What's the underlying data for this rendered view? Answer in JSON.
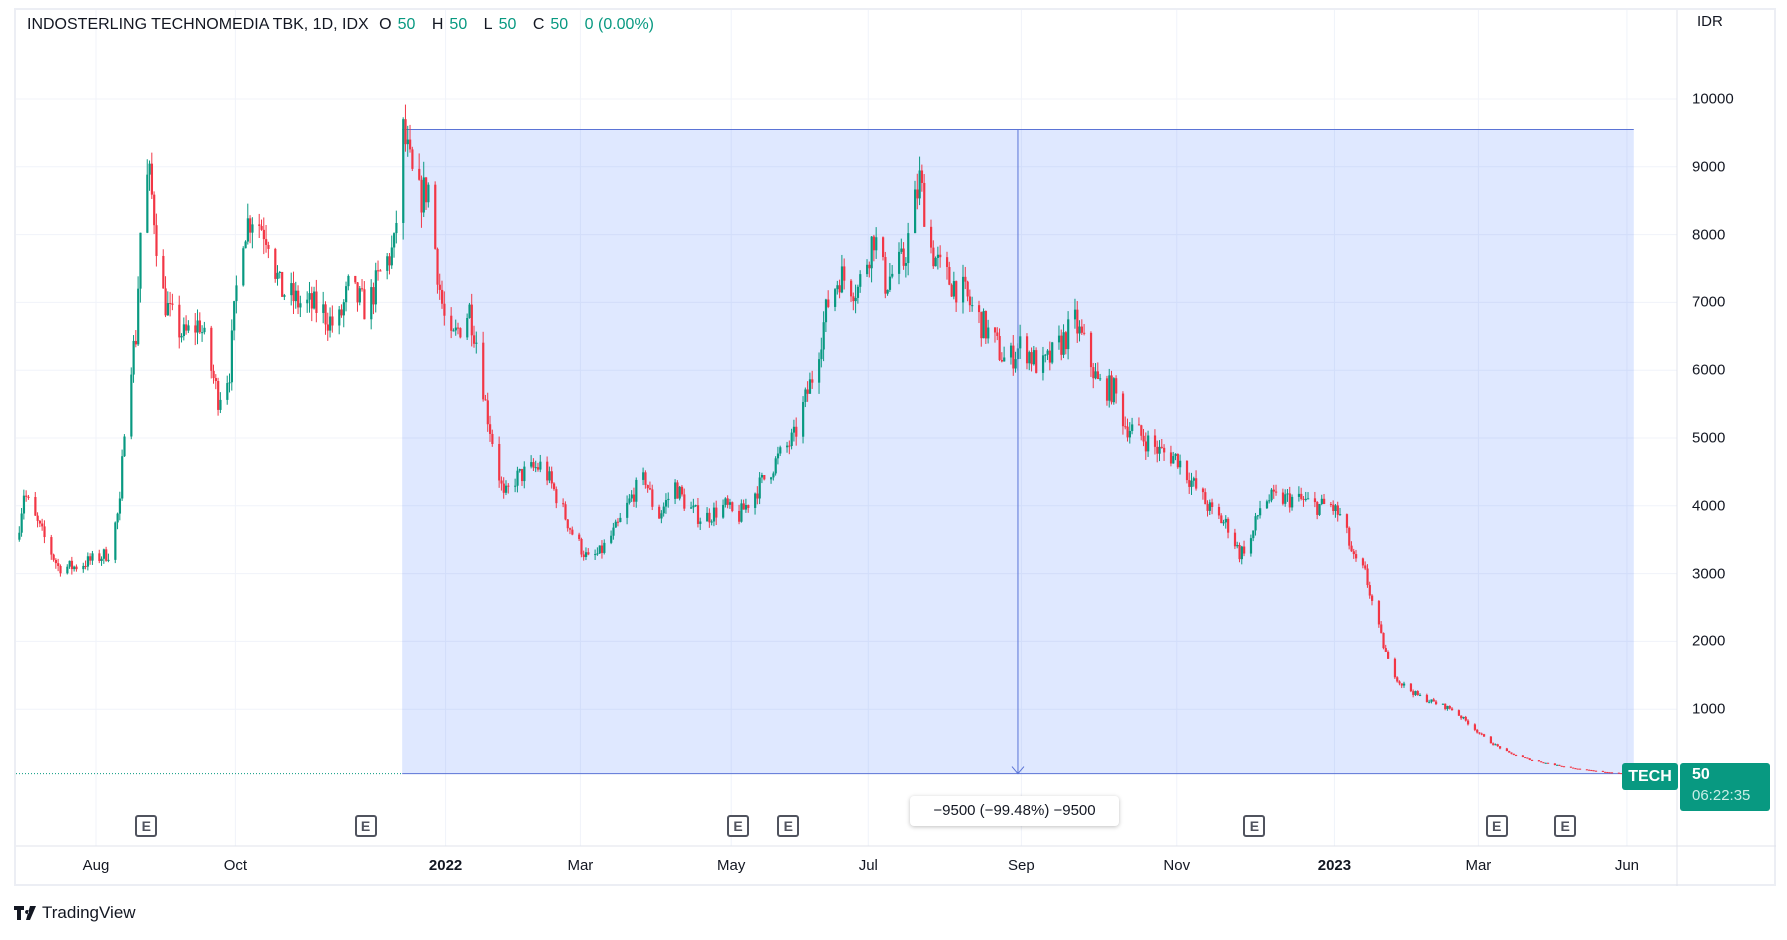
{
  "header": {
    "symbol_name": "INDOSTERLING TECHNOMEDIA TBK, 1D, IDX",
    "o_label": "O",
    "o": "50",
    "h_label": "H",
    "h": "50",
    "l_label": "L",
    "l": "50",
    "c_label": "C",
    "c": "50",
    "change": "0 (0.00%)"
  },
  "currency": "IDR",
  "price_tag": {
    "ticker": "TECH",
    "price": "50",
    "countdown": "06:22:35"
  },
  "measure": {
    "label": "−9500 (−99.48%) −9500"
  },
  "earnings_marker": "E",
  "brand": "TradingView",
  "colors": {
    "up": "#089981",
    "down": "#f23645",
    "range_fill": "#2962ff",
    "range_line": "#5b74d6"
  },
  "chart_data": {
    "type": "candlestick",
    "title": "INDOSTERLING TECHNOMEDIA TBK, 1D, IDX",
    "ylabel": "IDR",
    "ylim": [
      0,
      10400
    ],
    "y_ticks": [
      1000,
      2000,
      3000,
      4000,
      5000,
      6000,
      7000,
      8000,
      9000,
      10000
    ],
    "y_tick_labels": [
      "1000",
      "2000",
      "3000",
      "4000",
      "5000",
      "6000",
      "7000",
      "8000",
      "9000",
      "10000"
    ],
    "x_start_date": "2021-06-27",
    "x_ticks": [
      {
        "label": "Aug",
        "day": 35,
        "bold": false
      },
      {
        "label": "Oct",
        "day": 96,
        "bold": false
      },
      {
        "label": "2022",
        "day": 188,
        "bold": true
      },
      {
        "label": "Mar",
        "day": 247,
        "bold": false
      },
      {
        "label": "May",
        "day": 313,
        "bold": false
      },
      {
        "label": "Jul",
        "day": 373,
        "bold": false
      },
      {
        "label": "Sep",
        "day": 440,
        "bold": false
      },
      {
        "label": "Nov",
        "day": 508,
        "bold": false
      },
      {
        "label": "2023",
        "day": 577,
        "bold": true
      },
      {
        "label": "Mar",
        "day": 640,
        "bold": false
      },
      {
        "label": "Jun",
        "day": 705,
        "bold": false
      }
    ],
    "earnings_days": [
      57,
      153,
      316,
      338,
      542,
      648,
      678
    ],
    "price_path_days_close": [
      [
        0,
        3500
      ],
      [
        3,
        4200
      ],
      [
        8,
        3800
      ],
      [
        18,
        3100
      ],
      [
        25,
        3100
      ],
      [
        33,
        3200
      ],
      [
        40,
        3300
      ],
      [
        45,
        4000
      ],
      [
        48,
        5800
      ],
      [
        52,
        6500
      ],
      [
        55,
        8800
      ],
      [
        58,
        8800
      ],
      [
        60,
        8300
      ],
      [
        63,
        7200
      ],
      [
        67,
        6800
      ],
      [
        73,
        6500
      ],
      [
        80,
        6700
      ],
      [
        88,
        5600
      ],
      [
        93,
        6000
      ],
      [
        98,
        8000
      ],
      [
        103,
        8300
      ],
      [
        110,
        8000
      ],
      [
        115,
        7200
      ],
      [
        123,
        7000
      ],
      [
        133,
        6900
      ],
      [
        140,
        6600
      ],
      [
        145,
        7200
      ],
      [
        153,
        6900
      ],
      [
        160,
        7500
      ],
      [
        165,
        7800
      ],
      [
        169,
        9500
      ],
      [
        172,
        9000
      ],
      [
        175,
        8500
      ],
      [
        180,
        8700
      ],
      [
        185,
        7200
      ],
      [
        189,
        6300
      ],
      [
        193,
        6600
      ],
      [
        198,
        6900
      ],
      [
        202,
        6300
      ],
      [
        205,
        5500
      ],
      [
        209,
        4800
      ],
      [
        213,
        4100
      ],
      [
        218,
        4400
      ],
      [
        223,
        4500
      ],
      [
        230,
        4600
      ],
      [
        238,
        4000
      ],
      [
        243,
        3600
      ],
      [
        250,
        3200
      ],
      [
        255,
        3300
      ],
      [
        263,
        3700
      ],
      [
        270,
        4200
      ],
      [
        275,
        4400
      ],
      [
        280,
        3800
      ],
      [
        288,
        4300
      ],
      [
        293,
        4000
      ],
      [
        300,
        3800
      ],
      [
        310,
        4000
      ],
      [
        315,
        3800
      ],
      [
        323,
        4200
      ],
      [
        333,
        4700
      ],
      [
        340,
        5000
      ],
      [
        348,
        5900
      ],
      [
        355,
        7000
      ],
      [
        360,
        7400
      ],
      [
        368,
        7200
      ],
      [
        375,
        8000
      ],
      [
        380,
        7300
      ],
      [
        388,
        7600
      ],
      [
        395,
        8800
      ],
      [
        400,
        7800
      ],
      [
        405,
        7400
      ],
      [
        413,
        7200
      ],
      [
        420,
        6800
      ],
      [
        428,
        6400
      ],
      [
        433,
        6100
      ],
      [
        440,
        6400
      ],
      [
        448,
        6000
      ],
      [
        455,
        6300
      ],
      [
        463,
        6700
      ],
      [
        468,
        6300
      ],
      [
        473,
        5800
      ],
      [
        480,
        5700
      ],
      [
        485,
        5200
      ],
      [
        493,
        5000
      ],
      [
        500,
        4800
      ],
      [
        508,
        4700
      ],
      [
        515,
        4300
      ],
      [
        523,
        3900
      ],
      [
        530,
        3700
      ],
      [
        535,
        3300
      ],
      [
        540,
        3500
      ],
      [
        545,
        4100
      ],
      [
        553,
        4100
      ],
      [
        560,
        4100
      ],
      [
        568,
        4000
      ],
      [
        575,
        4000
      ],
      [
        580,
        3800
      ],
      [
        585,
        3200
      ],
      [
        590,
        3000
      ],
      [
        595,
        2300
      ],
      [
        600,
        1700
      ],
      [
        605,
        1400
      ],
      [
        613,
        1200
      ],
      [
        620,
        1100
      ],
      [
        628,
        1000
      ],
      [
        635,
        800
      ],
      [
        643,
        550
      ],
      [
        653,
        350
      ],
      [
        663,
        250
      ],
      [
        673,
        180
      ],
      [
        683,
        120
      ],
      [
        693,
        80
      ],
      [
        703,
        50
      ]
    ],
    "measured_range": {
      "start_day": 169,
      "end_day": 708,
      "top_price": 9550,
      "bottom_price": 50,
      "change": -9500,
      "change_pct": -99.48
    },
    "last_price": 50,
    "grid": true
  }
}
